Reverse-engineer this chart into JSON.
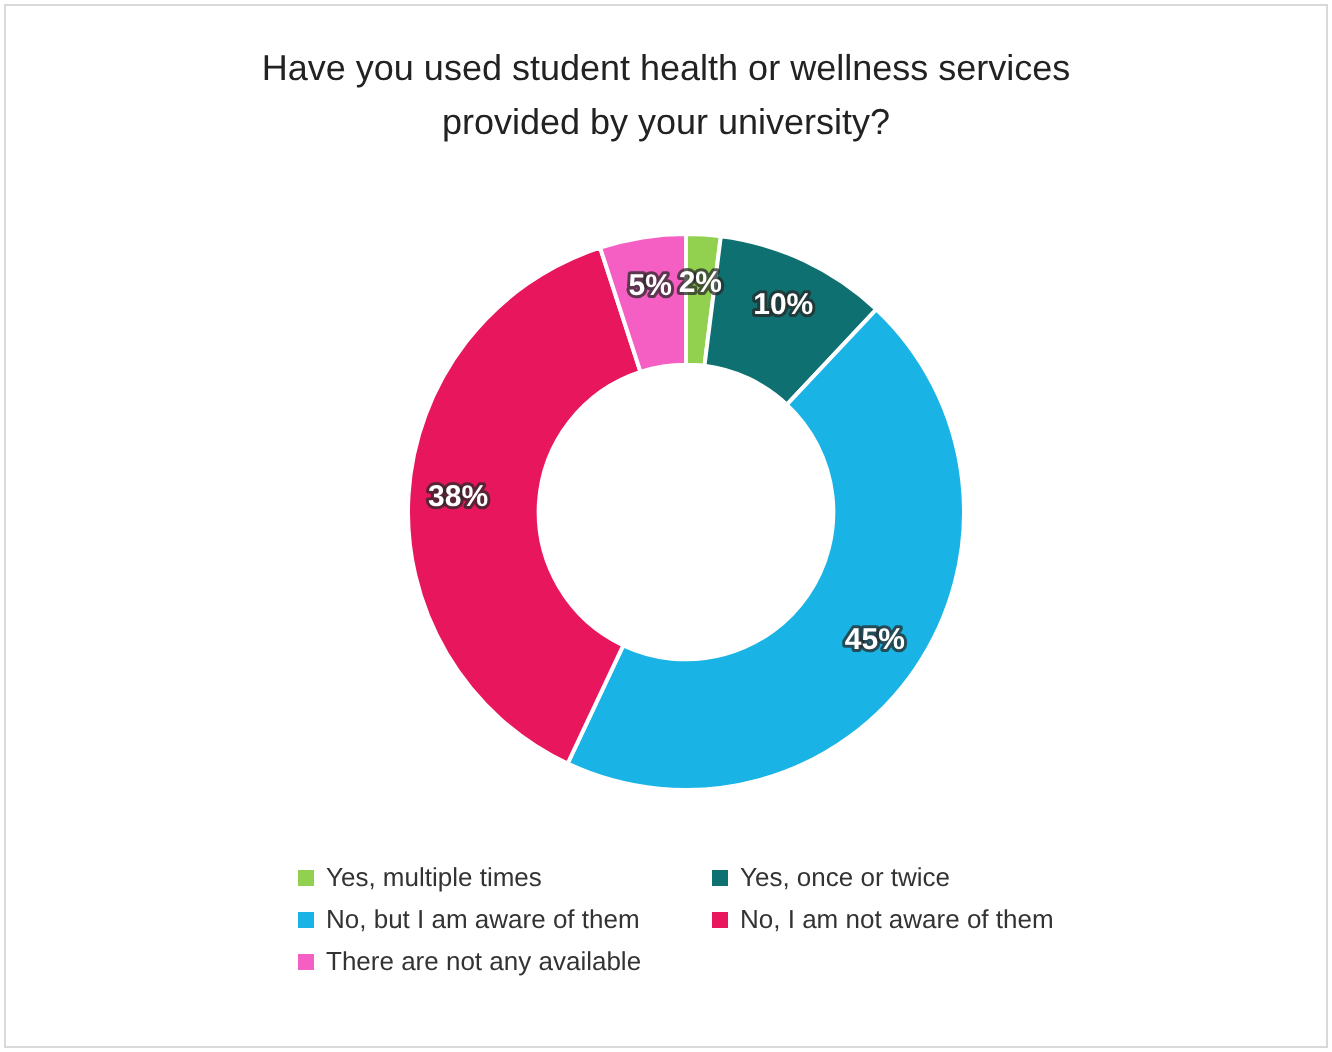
{
  "chart_data": {
    "type": "donut",
    "title": "Have you used student health or wellness services provided by your university?",
    "categories": [
      "Yes, multiple times",
      "Yes, once or twice",
      "No, but I am aware of them",
      "No, I am not aware of them",
      "There are not any available"
    ],
    "values": [
      2,
      10,
      45,
      38,
      5
    ],
    "colors": [
      "#92d050",
      "#0e7070",
      "#1ab3e6",
      "#e8175d",
      "#f55fc3"
    ],
    "value_labels": [
      "2%",
      "10%",
      "45%",
      "38%",
      "5%"
    ],
    "legend": "bottom"
  }
}
